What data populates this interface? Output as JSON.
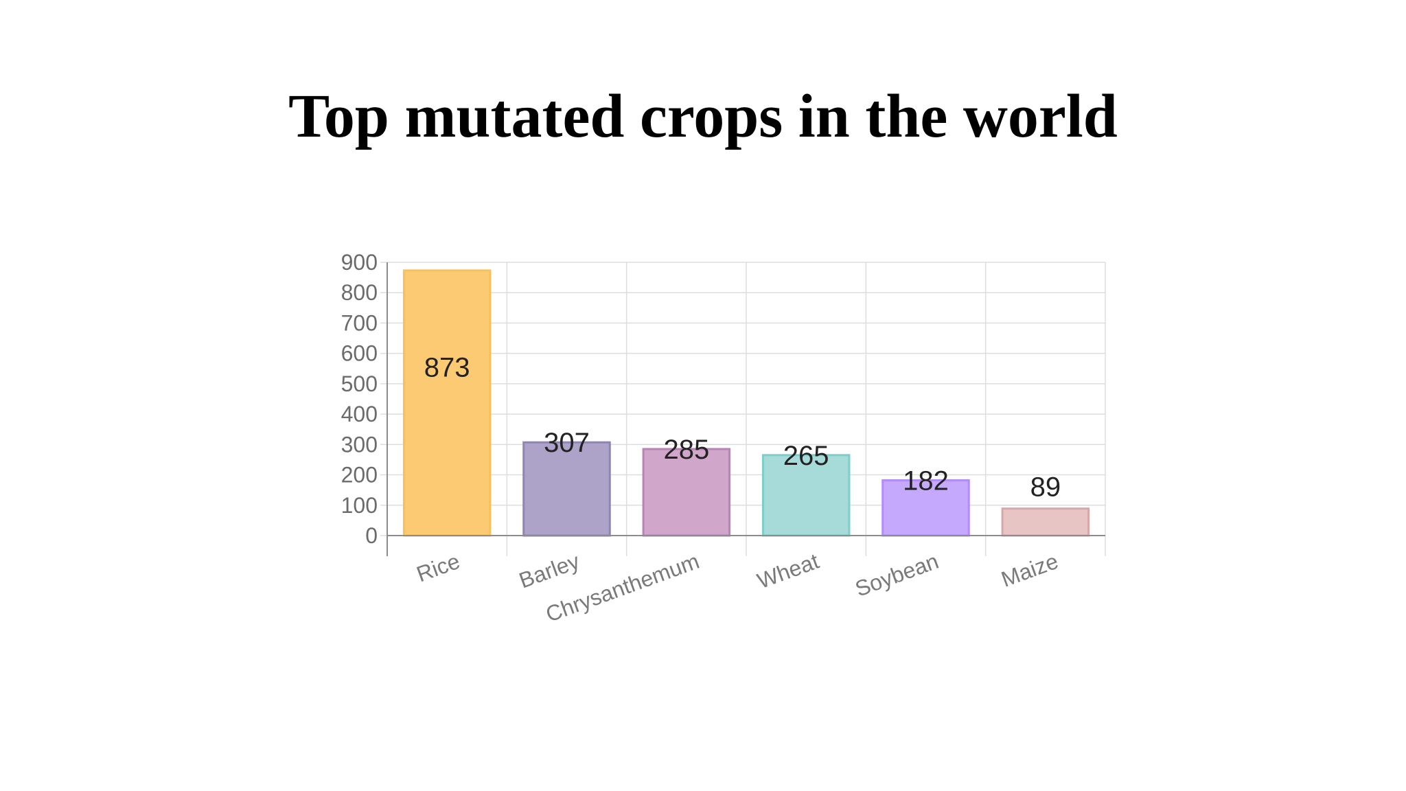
{
  "slide": {
    "title": "Top mutated crops in the world"
  },
  "chart_data": {
    "type": "bar",
    "title": "Top mutated crops in the world",
    "categories": [
      "Rice",
      "Barley",
      "Chrysanthemum",
      "Wheat",
      "Soybean",
      "Maize"
    ],
    "values": [
      873,
      307,
      285,
      265,
      182,
      89
    ],
    "data_labels": [
      "873",
      "307",
      "285",
      "265",
      "182",
      "89"
    ],
    "y_ticks": [
      "0",
      "100",
      "200",
      "300",
      "400",
      "500",
      "600",
      "700",
      "800",
      "900"
    ],
    "ylim": [
      0,
      900
    ],
    "grid": true,
    "legend": "none",
    "colors": {
      "fills": [
        "#fcca73",
        "#ada3c8",
        "#d1a6cb",
        "#a6dbd9",
        "#c5a9fc",
        "#e8c5c5"
      ],
      "strokes": [
        "#f6c05a",
        "#8f84b4",
        "#b884b4",
        "#7ccfc9",
        "#b28cfb",
        "#d8a8a8"
      ],
      "grid": "#dddddd",
      "axis": "#8c8c8c"
    }
  }
}
